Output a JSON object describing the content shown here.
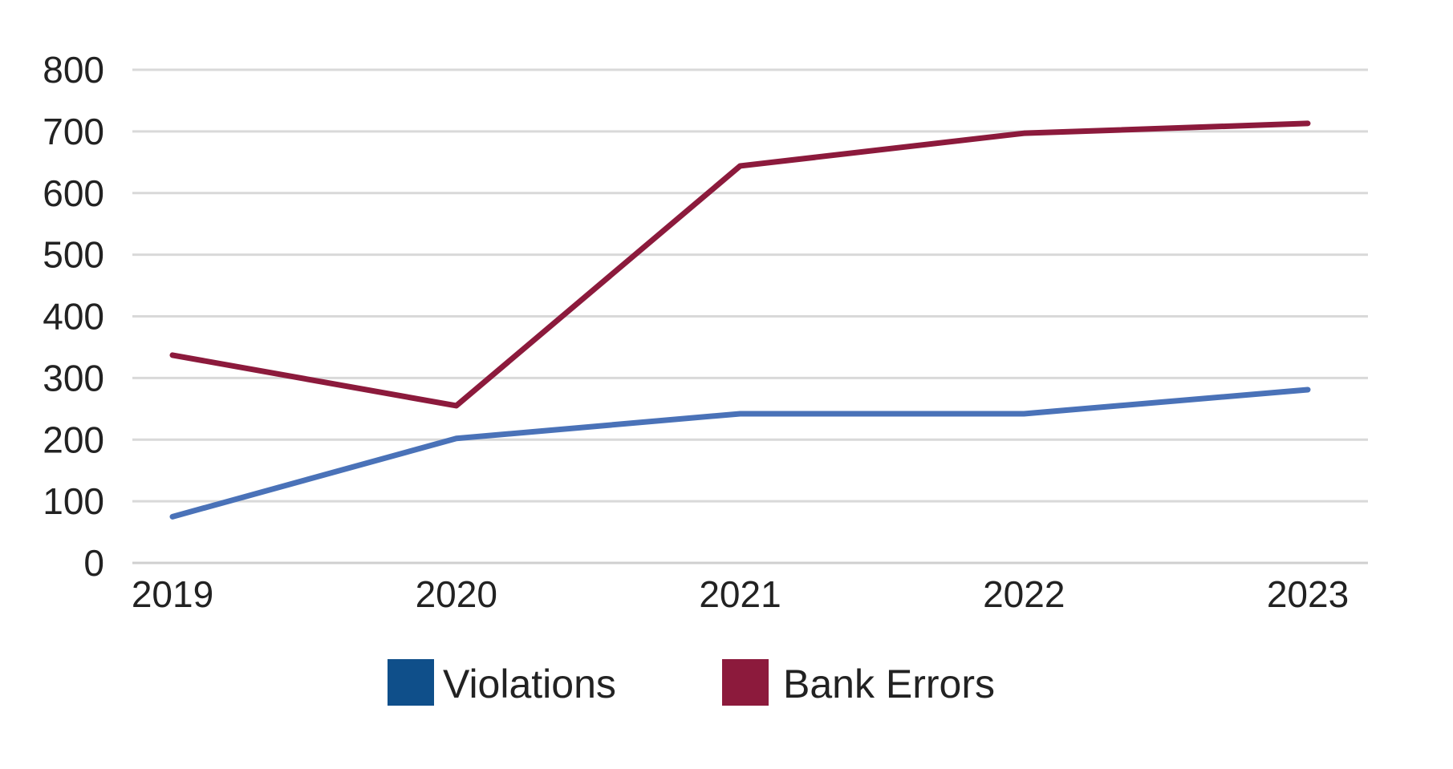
{
  "chart_data": {
    "type": "line",
    "title": "",
    "xlabel": "",
    "ylabel": "",
    "categories": [
      "2019",
      "2020",
      "2021",
      "2022",
      "2023"
    ],
    "ylim": [
      0,
      800
    ],
    "yticks": [
      0,
      100,
      200,
      300,
      400,
      500,
      600,
      700,
      800
    ],
    "grid": true,
    "legend_position": "bottom-center",
    "series": [
      {
        "name": "Violations",
        "values": [
          75,
          202,
          242,
          242,
          281
        ],
        "color": "#4a72b8",
        "legend_color": "#0f4f8a"
      },
      {
        "name": "Bank Errors",
        "values": [
          337,
          255,
          644,
          697,
          713
        ],
        "color": "#8c1a3c",
        "legend_color": "#8c1a3c"
      }
    ]
  }
}
